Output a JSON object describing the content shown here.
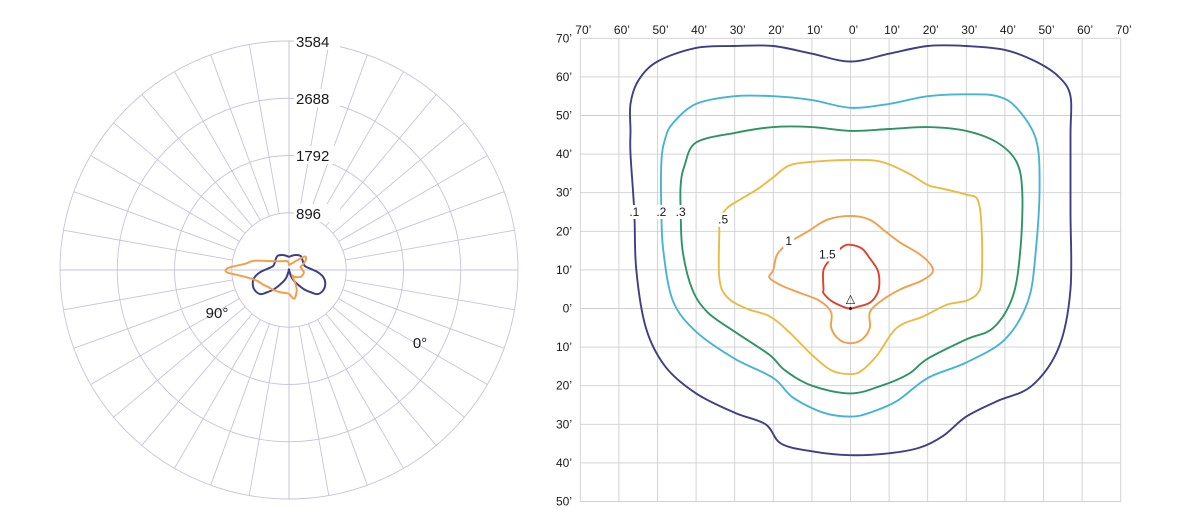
{
  "colors": {
    "grid": "#c9c2dc",
    "iso_grid": "#cfcfd4",
    "text": "#1a1a1a",
    "polar_series_1": "#3e3f86",
    "polar_series_2": "#f0a04a",
    "contour_0_1": "#3e3f86",
    "contour_0_2": "#46b4d6",
    "contour_0_3": "#2f9464",
    "contour_0_5": "#e9bb42",
    "contour_1": "#f0a04a",
    "contour_1_5": "#d9442e"
  },
  "chart_data": [
    {
      "type": "polar",
      "radial_ticks": [
        896,
        1792,
        2688,
        3584
      ],
      "radial_tick_labels": [
        "896",
        "1792",
        "2688",
        "3584"
      ],
      "radial_max": 4032,
      "angle_labels": [
        {
          "text": "90°",
          "angle": 90
        },
        {
          "text": "0°",
          "angle": 0
        }
      ],
      "series": [
        {
          "color_key": "polar_series_1",
          "points": [
            [
              0,
              0
            ],
            [
              10,
              0
            ],
            [
              20,
              150
            ],
            [
              30,
              280
            ],
            [
              38,
              430
            ],
            [
              45,
              560
            ],
            [
              50,
              660
            ],
            [
              60,
              700
            ],
            [
              70,
              680
            ],
            [
              78,
              620
            ],
            [
              85,
              520
            ],
            [
              90,
              430
            ],
            [
              100,
              310
            ],
            [
              110,
              280
            ],
            [
              140,
              320
            ],
            [
              160,
              280
            ],
            [
              175,
              240
            ],
            [
              180,
              235
            ],
            [
              185,
              240
            ],
            [
              200,
              280
            ],
            [
              220,
              320
            ],
            [
              250,
              280
            ],
            [
              260,
              310
            ],
            [
              270,
              430
            ],
            [
              275,
              520
            ],
            [
              282,
              620
            ],
            [
              290,
              680
            ],
            [
              300,
              700
            ],
            [
              310,
              660
            ],
            [
              315,
              560
            ],
            [
              322,
              430
            ],
            [
              330,
              280
            ],
            [
              340,
              150
            ],
            [
              350,
              0
            ]
          ]
        },
        {
          "color_key": "polar_series_2",
          "points": [
            [
              0,
              420
            ],
            [
              10,
              515
            ],
            [
              20,
              395
            ],
            [
              25,
              270
            ],
            [
              30,
              120
            ],
            [
              40,
              160
            ],
            [
              60,
              240
            ],
            [
              80,
              265
            ],
            [
              95,
              225
            ],
            [
              105,
              210
            ],
            [
              110,
              250
            ],
            [
              120,
              340
            ],
            [
              130,
              370
            ],
            [
              140,
              220
            ],
            [
              150,
              150
            ],
            [
              160,
              120
            ],
            [
              175,
              90
            ],
            [
              180,
              90
            ],
            [
              185,
              140
            ],
            [
              200,
              170
            ],
            [
              220,
              200
            ],
            [
              240,
              310
            ],
            [
              255,
              630
            ],
            [
              262,
              780
            ],
            [
              268,
              1070
            ],
            [
              272,
              1100
            ],
            [
              276,
              890
            ],
            [
              282,
              700
            ],
            [
              290,
              580
            ],
            [
              300,
              520
            ],
            [
              310,
              470
            ],
            [
              320,
              450
            ],
            [
              330,
              430
            ],
            [
              340,
              420
            ],
            [
              350,
              410
            ]
          ]
        }
      ]
    },
    {
      "type": "isolux-contour",
      "x_ticks": [
        -70,
        -60,
        -50,
        -40,
        -30,
        -20,
        -10,
        0,
        10,
        20,
        30,
        40,
        50,
        60,
        70
      ],
      "x_tick_labels": [
        "70’",
        "60’",
        "50’",
        "40’",
        "30’",
        "20’",
        "10’",
        "0’",
        "10’",
        "20’",
        "30’",
        "40’",
        "50’",
        "60’",
        "70’"
      ],
      "y_ticks": [
        70,
        60,
        50,
        40,
        30,
        20,
        10,
        0,
        -10,
        -20,
        -30,
        -40,
        -50
      ],
      "y_tick_labels": [
        "70’",
        "60’",
        "50’",
        "40’",
        "30’",
        "20’",
        "10’",
        "0’",
        "10’",
        "20’",
        "30’",
        "40’",
        "50’"
      ],
      "xlim": [
        -70,
        70
      ],
      "ylim": [
        -50,
        70
      ],
      "fixture_symbol": "△",
      "contours": [
        {
          "label": ".1",
          "color_key": "contour_0_1",
          "label_at": [
            -56,
            25
          ],
          "points": [
            [
              -57,
              46
            ],
            [
              -57,
              53
            ],
            [
              -55,
              59
            ],
            [
              -50,
              64
            ],
            [
              -40,
              67.5
            ],
            [
              -30,
              68
            ],
            [
              -20,
              68
            ],
            [
              -10,
              66
            ],
            [
              0,
              64
            ],
            [
              10,
              66
            ],
            [
              20,
              68
            ],
            [
              30,
              68
            ],
            [
              40,
              67
            ],
            [
              48,
              64
            ],
            [
              54,
              60
            ],
            [
              57,
              55
            ],
            [
              57,
              45
            ],
            [
              57,
              25
            ],
            [
              57,
              5
            ],
            [
              54,
              -10
            ],
            [
              47,
              -20
            ],
            [
              38,
              -24
            ],
            [
              30,
              -28
            ],
            [
              24,
              -33
            ],
            [
              18,
              -36
            ],
            [
              10,
              -37.5
            ],
            [
              0,
              -38
            ],
            [
              -10,
              -37
            ],
            [
              -18,
              -35
            ],
            [
              -22,
              -30
            ],
            [
              -30,
              -27
            ],
            [
              -40,
              -22
            ],
            [
              -48,
              -15
            ],
            [
              -53,
              -5
            ],
            [
              -55.5,
              10
            ],
            [
              -56,
              25
            ],
            [
              -57,
              40
            ]
          ]
        },
        {
          "label": ".2",
          "color_key": "contour_0_2",
          "label_at": [
            -49,
            25
          ],
          "points": [
            [
              -49,
              38
            ],
            [
              -48,
              44
            ],
            [
              -46,
              48
            ],
            [
              -40,
              53
            ],
            [
              -30,
              55
            ],
            [
              -20,
              55
            ],
            [
              -10,
              54
            ],
            [
              0,
              52
            ],
            [
              10,
              53
            ],
            [
              20,
              55
            ],
            [
              30,
              55.5
            ],
            [
              38,
              55
            ],
            [
              43,
              52
            ],
            [
              48,
              44
            ],
            [
              49,
              32
            ],
            [
              48,
              15
            ],
            [
              46,
              2
            ],
            [
              40,
              -8
            ],
            [
              30,
              -14
            ],
            [
              20,
              -18
            ],
            [
              12,
              -24
            ],
            [
              5,
              -27
            ],
            [
              0,
              -28
            ],
            [
              -7,
              -27
            ],
            [
              -15,
              -23
            ],
            [
              -20,
              -18
            ],
            [
              -30,
              -13
            ],
            [
              -40,
              -6
            ],
            [
              -46,
              2
            ],
            [
              -48.5,
              15
            ],
            [
              -49,
              25
            ]
          ]
        },
        {
          "label": ".3",
          "color_key": "contour_0_3",
          "label_at": [
            -44,
            25
          ],
          "points": [
            [
              -44,
              32
            ],
            [
              -43,
              37
            ],
            [
              -40,
              43
            ],
            [
              -30,
              45.5
            ],
            [
              -20,
              47
            ],
            [
              -10,
              47
            ],
            [
              0,
              46
            ],
            [
              10,
              46.5
            ],
            [
              20,
              47
            ],
            [
              30,
              46
            ],
            [
              38,
              43
            ],
            [
              43,
              38
            ],
            [
              44.5,
              30
            ],
            [
              44,
              15
            ],
            [
              42,
              3
            ],
            [
              37,
              -5
            ],
            [
              30,
              -8
            ],
            [
              20,
              -13
            ],
            [
              15,
              -17
            ],
            [
              8,
              -20
            ],
            [
              0,
              -22
            ],
            [
              -10,
              -20
            ],
            [
              -17,
              -16
            ],
            [
              -21,
              -12
            ],
            [
              -30,
              -6
            ],
            [
              -37,
              -1
            ],
            [
              -41,
              5
            ],
            [
              -43.5,
              15
            ],
            [
              -44,
              25
            ]
          ]
        },
        {
          "label": ".5",
          "color_key": "contour_0_5",
          "label_at": [
            -33,
            23
          ],
          "points": [
            [
              -34,
              20
            ],
            [
              -34,
              23
            ],
            [
              -32,
              26
            ],
            [
              -29,
              28
            ],
            [
              -24,
              31
            ],
            [
              -20,
              34
            ],
            [
              -16,
              37
            ],
            [
              -10,
              38
            ],
            [
              0,
              38.5
            ],
            [
              8,
              38
            ],
            [
              15,
              35
            ],
            [
              20,
              32
            ],
            [
              24,
              31
            ],
            [
              30,
              29.5
            ],
            [
              33,
              28
            ],
            [
              34,
              20
            ],
            [
              34,
              8
            ],
            [
              33,
              4
            ],
            [
              30,
              2
            ],
            [
              25,
              1
            ],
            [
              19,
              -2
            ],
            [
              12,
              -5
            ],
            [
              7,
              -12
            ],
            [
              3,
              -16
            ],
            [
              0,
              -17
            ],
            [
              -5,
              -16
            ],
            [
              -10,
              -12
            ],
            [
              -16,
              -6
            ],
            [
              -21,
              -2
            ],
            [
              -27,
              0
            ],
            [
              -32,
              3
            ],
            [
              -34,
              8
            ]
          ]
        },
        {
          "label": "1",
          "color_key": "contour_1",
          "label_at": [
            -16,
            17.5
          ],
          "points": [
            [
              -20,
              10
            ],
            [
              -19,
              14
            ],
            [
              -16,
              17
            ],
            [
              -11,
              20
            ],
            [
              -6,
              23
            ],
            [
              0,
              24
            ],
            [
              5,
              23
            ],
            [
              9,
              20
            ],
            [
              13,
              17
            ],
            [
              18,
              14
            ],
            [
              21,
              11
            ],
            [
              21,
              9
            ],
            [
              18,
              7
            ],
            [
              13,
              5
            ],
            [
              8,
              2
            ],
            [
              5,
              -1
            ],
            [
              5,
              -5
            ],
            [
              3,
              -8
            ],
            [
              0,
              -9
            ],
            [
              -3,
              -8
            ],
            [
              -5,
              -5
            ],
            [
              -5,
              -1
            ],
            [
              -8,
              2
            ],
            [
              -13,
              4
            ],
            [
              -18,
              6
            ],
            [
              -21,
              8
            ]
          ]
        },
        {
          "label": "1.5",
          "color_key": "contour_1_5",
          "label_at": [
            -6,
            14
          ],
          "points": [
            [
              -7,
              5
            ],
            [
              -7,
              10
            ],
            [
              -5,
              13
            ],
            [
              -2,
              16
            ],
            [
              0,
              16.5
            ],
            [
              3,
              15.5
            ],
            [
              5,
              13
            ],
            [
              7,
              10
            ],
            [
              7.5,
              7
            ],
            [
              7,
              4
            ],
            [
              5,
              1.5
            ],
            [
              2,
              0.5
            ],
            [
              0,
              0
            ],
            [
              -2,
              0.5
            ],
            [
              -5,
              2
            ],
            [
              -7,
              4
            ]
          ]
        }
      ]
    }
  ]
}
